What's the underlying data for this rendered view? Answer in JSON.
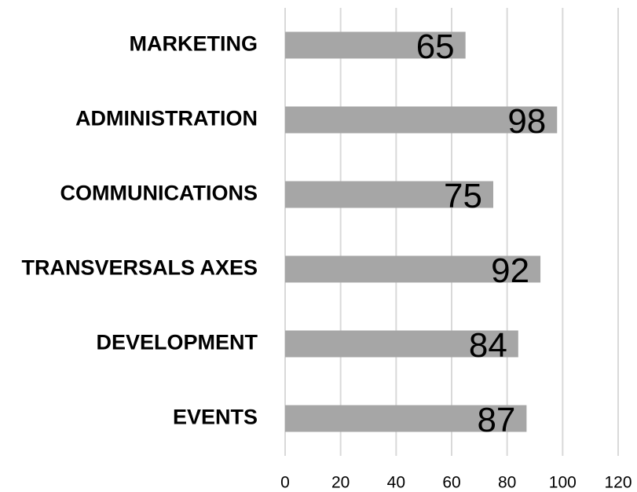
{
  "chart_data": {
    "type": "hbar",
    "categories": [
      "MARKETING",
      "ADMINISTRATION",
      "COMMUNICATIONS",
      "TRANSVERSALS AXES",
      "DEVELOPMENT",
      "EVENTS"
    ],
    "values": [
      65,
      98,
      75,
      92,
      84,
      87
    ],
    "color": "#a6a6a6",
    "xlim": [
      0,
      120
    ],
    "xticks": [
      0,
      20,
      40,
      60,
      80,
      100,
      120
    ],
    "grid": true,
    "data_labels": true
  }
}
